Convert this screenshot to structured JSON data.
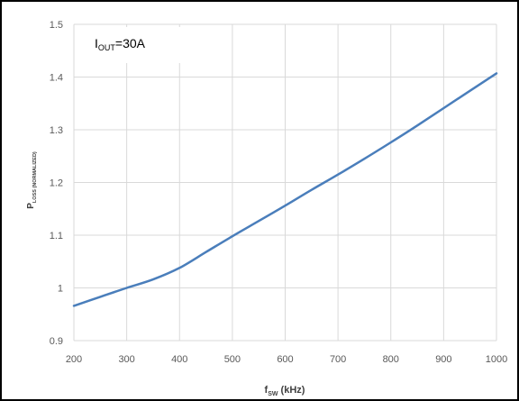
{
  "chart_data": {
    "type": "line",
    "annotation": {
      "main": "I",
      "sub": "OUT",
      "rest": "=30A"
    },
    "xlabel": {
      "main": "f",
      "sub": "SW",
      "rest": " (kHz)"
    },
    "ylabel": {
      "main": "P",
      "sub": "LOSS (NORMALIZED)",
      "rest": ""
    },
    "xlim": [
      200,
      1000
    ],
    "ylim": [
      0.9,
      1.5
    ],
    "x_ticks": [
      200,
      300,
      400,
      500,
      600,
      700,
      800,
      900,
      1000
    ],
    "y_ticks": [
      "0.9",
      "1",
      "1.1",
      "1.2",
      "1.3",
      "1.4",
      "1.5"
    ],
    "grid": true,
    "legend": "none",
    "colors": {
      "line": "#4a7ebb",
      "grid": "#d9d9d9",
      "border": "#000000"
    },
    "series": [
      {
        "x": [
          200,
          250,
          300,
          350,
          400,
          450,
          500,
          550,
          600,
          650,
          700,
          750,
          800,
          850,
          900,
          950,
          1000
        ],
        "values": [
          0.966,
          0.983,
          1.0,
          1.016,
          1.038,
          1.068,
          1.098,
          1.127,
          1.156,
          1.186,
          1.215,
          1.245,
          1.276,
          1.308,
          1.341,
          1.374,
          1.407
        ]
      }
    ]
  }
}
